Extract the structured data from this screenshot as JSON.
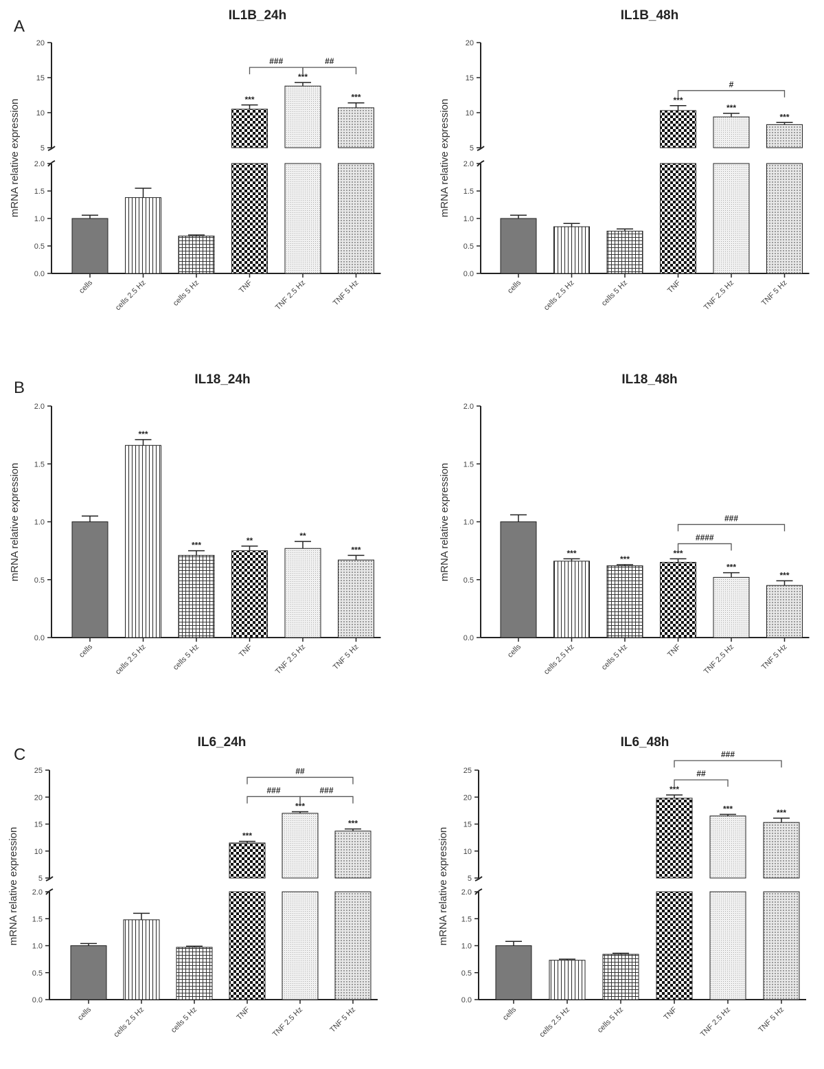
{
  "panel_letters": [
    "A",
    "B",
    "C"
  ],
  "chart_data": [
    {
      "type": "bar",
      "panel": "A",
      "title": "IL1B_24h",
      "ylabel": "mRNA relative expression",
      "categories": [
        "cells",
        "cells 2.5 Hz",
        "cells 5 Hz",
        "TNF",
        "TNF 2.5 Hz",
        "TNF 5 Hz"
      ],
      "values": [
        1.0,
        1.38,
        0.68,
        10.5,
        13.8,
        10.7
      ],
      "errors": [
        0.06,
        0.17,
        0.02,
        0.6,
        0.5,
        0.7
      ],
      "significance": [
        "",
        "",
        "",
        "***",
        "***",
        "***"
      ],
      "broken_axis": true,
      "lower_range": [
        0,
        2
      ],
      "lower_ticks": [
        "0.0",
        "0.5",
        "1.0",
        "1.5",
        "2.0"
      ],
      "upper_range": [
        5,
        20
      ],
      "upper_ticks": [
        "5",
        "10",
        "15",
        "20"
      ],
      "brackets": [
        {
          "from": 3,
          "to": 4,
          "label": "###"
        },
        {
          "from": 4,
          "to": 5,
          "label": "##"
        }
      ]
    },
    {
      "type": "bar",
      "panel": "A",
      "title": "IL1B_48h",
      "ylabel": "mRNA relative expression",
      "categories": [
        "cells",
        "cells 2.5 Hz",
        "cells 5 Hz",
        "TNF",
        "TNF 2.5 Hz",
        "TNF 5 Hz"
      ],
      "values": [
        1.0,
        0.85,
        0.77,
        10.3,
        9.4,
        8.3
      ],
      "errors": [
        0.06,
        0.06,
        0.04,
        0.7,
        0.5,
        0.3
      ],
      "significance": [
        "",
        "",
        "",
        "***",
        "***",
        "***"
      ],
      "broken_axis": true,
      "lower_range": [
        0,
        2
      ],
      "lower_ticks": [
        "0.0",
        "0.5",
        "1.0",
        "1.5",
        "2.0"
      ],
      "upper_range": [
        5,
        20
      ],
      "upper_ticks": [
        "5",
        "10",
        "15",
        "20"
      ],
      "brackets": [
        {
          "from": 3,
          "to": 5,
          "label": "#"
        }
      ]
    },
    {
      "type": "bar",
      "panel": "B",
      "title": "IL18_24h",
      "ylabel": "mRNA relative expression",
      "categories": [
        "cells",
        "cells 2.5 Hz",
        "cells 5 Hz",
        "TNF",
        "TNF 2.5 Hz",
        "TNF 5 Hz"
      ],
      "values": [
        1.0,
        1.66,
        0.71,
        0.75,
        0.77,
        0.67
      ],
      "errors": [
        0.05,
        0.05,
        0.04,
        0.04,
        0.06,
        0.04
      ],
      "significance": [
        "",
        "***",
        "***",
        "**",
        "**",
        "***"
      ],
      "broken_axis": false,
      "range": [
        0,
        2
      ],
      "ticks": [
        "0.0",
        "0.5",
        "1.0",
        "1.5",
        "2.0"
      ],
      "brackets": []
    },
    {
      "type": "bar",
      "panel": "B",
      "title": "IL18_48h",
      "ylabel": "mRNA relative expression",
      "categories": [
        "cells",
        "cells 2.5 Hz",
        "cells 5 Hz",
        "TNF",
        "TNF 2.5 Hz",
        "TNF 5 Hz"
      ],
      "values": [
        1.0,
        0.66,
        0.62,
        0.65,
        0.52,
        0.45
      ],
      "errors": [
        0.06,
        0.02,
        0.01,
        0.03,
        0.04,
        0.04
      ],
      "significance": [
        "",
        "***",
        "***",
        "***",
        "***",
        "***"
      ],
      "broken_axis": false,
      "range": [
        0,
        2
      ],
      "ticks": [
        "0.0",
        "0.5",
        "1.0",
        "1.5",
        "2.0"
      ],
      "brackets": [
        {
          "from": 3,
          "to": 5,
          "label": "###"
        },
        {
          "from": 3,
          "to": 4,
          "label": "####"
        }
      ]
    },
    {
      "type": "bar",
      "panel": "C",
      "title": "IL6_24h",
      "ylabel": "mRNA relative expression",
      "categories": [
        "cells",
        "cells 2.5 Hz",
        "cells 5 Hz",
        "TNF",
        "TNF 2.5 Hz",
        "TNF 5 Hz"
      ],
      "values": [
        1.0,
        1.48,
        0.97,
        11.5,
        17.0,
        13.7
      ],
      "errors": [
        0.04,
        0.12,
        0.02,
        0.3,
        0.3,
        0.4
      ],
      "significance": [
        "",
        "",
        "",
        "***",
        "***",
        "***"
      ],
      "broken_axis": true,
      "lower_range": [
        0,
        2
      ],
      "lower_ticks": [
        "0.0",
        "0.5",
        "1.0",
        "1.5",
        "2.0"
      ],
      "upper_range": [
        5,
        25
      ],
      "upper_ticks": [
        "5",
        "10",
        "15",
        "20",
        "25"
      ],
      "brackets": [
        {
          "from": 3,
          "to": 5,
          "label": "##"
        },
        {
          "from": 3,
          "to": 4,
          "label": "###"
        },
        {
          "from": 4,
          "to": 5,
          "label": "###"
        }
      ]
    },
    {
      "type": "bar",
      "panel": "C",
      "title": "IL6_48h",
      "ylabel": "mRNA relative expression",
      "categories": [
        "cells",
        "cells 2.5 Hz",
        "cells 5 Hz",
        "TNF",
        "TNF 2.5 Hz",
        "TNF 5 Hz"
      ],
      "values": [
        1.0,
        0.73,
        0.84,
        19.8,
        16.5,
        15.3
      ],
      "errors": [
        0.08,
        0.02,
        0.02,
        0.6,
        0.3,
        0.8
      ],
      "significance": [
        "",
        "",
        "",
        "***",
        "***",
        "***"
      ],
      "broken_axis": true,
      "lower_range": [
        0,
        2
      ],
      "lower_ticks": [
        "0.0",
        "0.5",
        "1.0",
        "1.5",
        "2.0"
      ],
      "upper_range": [
        5,
        25
      ],
      "upper_ticks": [
        "5",
        "10",
        "15",
        "20",
        "25"
      ],
      "brackets": [
        {
          "from": 3,
          "to": 5,
          "label": "###"
        },
        {
          "from": 3,
          "to": 4,
          "label": "##"
        }
      ]
    }
  ]
}
